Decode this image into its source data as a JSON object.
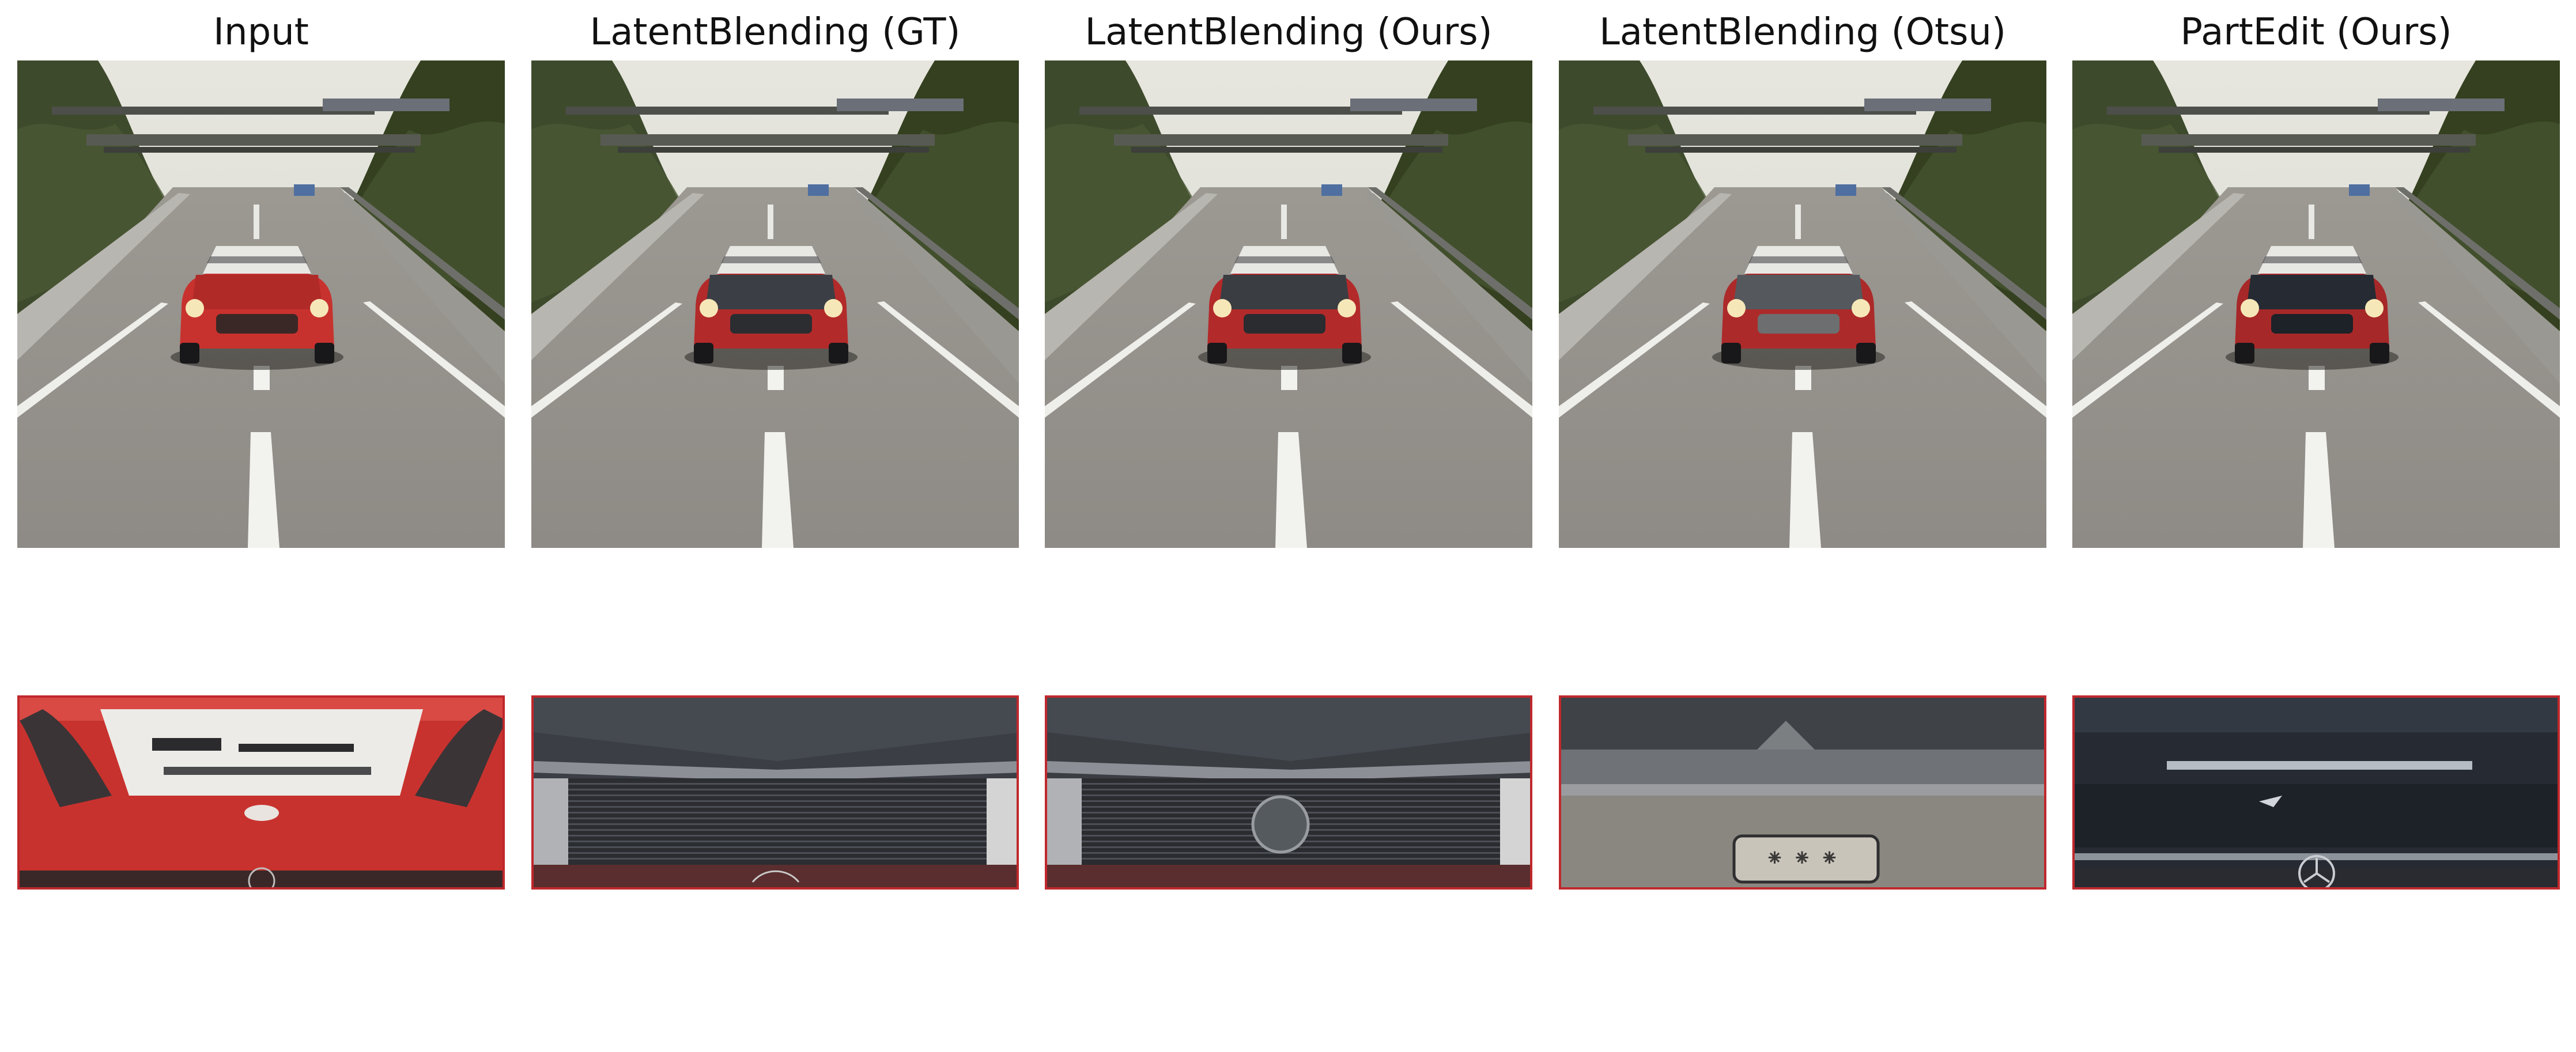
{
  "columns": [
    {
      "title": "Input",
      "car_body": "#c8322e",
      "hood": "#b02a28",
      "grille": "#3a2826",
      "crop_style": "red-hood"
    },
    {
      "title": "LatentBlending (GT)",
      "car_body": "#b32a2a",
      "hood": "#3b3f45",
      "grille": "#2b2d31",
      "crop_style": "dark-grille"
    },
    {
      "title": "LatentBlending (Ours)",
      "car_body": "#b32a2a",
      "hood": "#3a3d42",
      "grille": "#2a2c30",
      "crop_style": "dark-grille-emblem"
    },
    {
      "title": "LatentBlending (Otsu)",
      "car_body": "#ad2a2a",
      "hood": "#55585c",
      "grille": "#6c6e70",
      "crop_style": "grey-bumper"
    },
    {
      "title": "PartEdit (Ours)",
      "car_body": "#a72828",
      "hood": "#262b33",
      "grille": "#1d2128",
      "crop_style": "navy-hood"
    }
  ],
  "colors": {
    "crop_border": "#c0282d",
    "sky": "#d9dad2",
    "road": "#8e8a85",
    "trees": "#3e4a2c"
  }
}
